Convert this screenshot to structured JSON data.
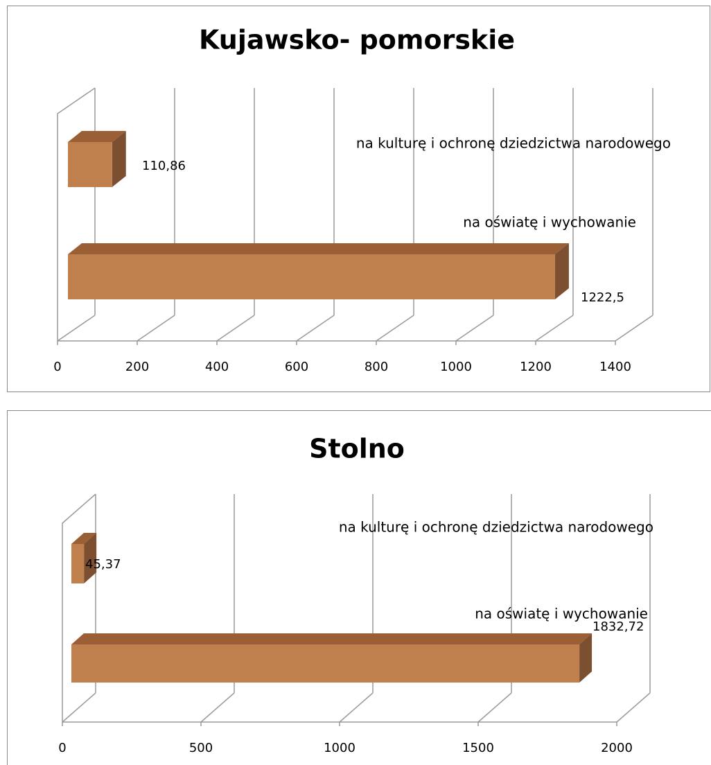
{
  "chart_data": [
    {
      "type": "bar3d",
      "title": "Kujawsko- pomorskie",
      "categories": [
        "na kulturę i ochronę dziedzictwa narodowego",
        "na oświatę i wychowanie"
      ],
      "values": [
        110.86,
        1222.5
      ],
      "value_labels": [
        "110,86",
        "1222,5"
      ],
      "color": "#c0804d",
      "xlim": [
        0,
        1400
      ],
      "xticks": [
        0,
        200,
        400,
        600,
        800,
        1000,
        1200,
        1400
      ],
      "grid": true
    },
    {
      "type": "bar3d",
      "title": "Stolno",
      "categories": [
        "na kulturę i ochronę dziedzictwa narodowego",
        "na oświatę i wychowanie"
      ],
      "values": [
        45.37,
        1832.72
      ],
      "value_labels": [
        "45,37",
        "1832,72"
      ],
      "color": "#c0804d",
      "xlim": [
        0,
        2000
      ],
      "xticks": [
        0,
        500,
        1000,
        1500,
        2000
      ],
      "grid": true
    }
  ]
}
